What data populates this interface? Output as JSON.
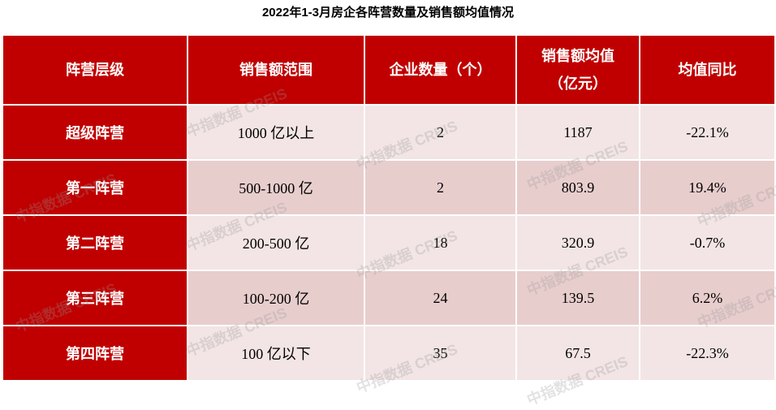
{
  "title": "2022年1-3月房企各阵营数量及销售额均值情况",
  "watermark": "中指数据 CREIS",
  "table": {
    "header": [
      "阵营层级",
      "销售额范围",
      "企业数量（个）",
      "销售额均值\n（亿元）",
      "均值同比"
    ],
    "rows": [
      [
        "超级阵营",
        "1000 亿以上",
        "2",
        "1187",
        "-22.1%"
      ],
      [
        "第一阵营",
        "500-1000 亿",
        "2",
        "803.9",
        "19.4%"
      ],
      [
        "第二阵营",
        "200-500 亿",
        "18",
        "320.9",
        "-0.7%"
      ],
      [
        "第三阵营",
        "100-200 亿",
        "24",
        "139.5",
        "6.2%"
      ],
      [
        "第四阵营",
        "100 亿以下",
        "35",
        "67.5",
        "-22.3%"
      ]
    ]
  }
}
